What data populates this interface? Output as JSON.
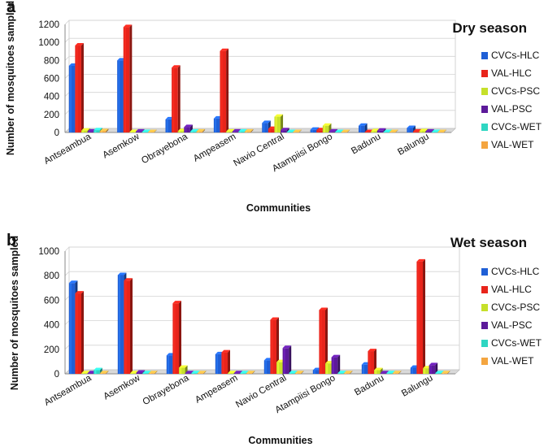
{
  "chart_data": [
    {
      "type": "bar",
      "panel_label": "a",
      "title": "Dry season",
      "xlabel": "Communities",
      "ylabel": "Number  of mosquitoes sampled",
      "ylim": [
        0,
        1200
      ],
      "yticks": [
        "0",
        "200",
        "400",
        "600",
        "800",
        "1000",
        "1200"
      ],
      "grid": true,
      "legend_position": "right",
      "categories": [
        "Antseambua",
        "Asemkow",
        "Obrayebona",
        "Ampeasem",
        "Navio Central",
        "Atampiisi Bongo",
        "Badunu",
        "Balungu"
      ],
      "series": [
        {
          "name": "CVCs-HLC",
          "color": "#1f5fd6",
          "values": [
            740,
            800,
            145,
            155,
            105,
            30,
            75,
            50
          ]
        },
        {
          "name": "VAL-HLC",
          "color": "#e8241b",
          "values": [
            965,
            1170,
            720,
            905,
            40,
            25,
            5,
            10
          ]
        },
        {
          "name": "CVCs-PSC",
          "color": "#c6e02a",
          "values": [
            20,
            5,
            15,
            10,
            175,
            75,
            15,
            15
          ]
        },
        {
          "name": "VAL-PSC",
          "color": "#5c1a9a",
          "values": [
            10,
            10,
            60,
            10,
            25,
            10,
            20,
            10
          ]
        },
        {
          "name": "CVCs-WET",
          "color": "#2fd6c2",
          "values": [
            25,
            5,
            10,
            10,
            5,
            5,
            5,
            5
          ]
        },
        {
          "name": "VAL-WET",
          "color": "#f4a540",
          "values": [
            15,
            5,
            10,
            10,
            5,
            5,
            5,
            5
          ]
        }
      ]
    },
    {
      "type": "bar",
      "panel_label": "b",
      "title": "Wet season",
      "xlabel": "Communities",
      "ylabel": "Number of mosquitoes sampled",
      "ylim": [
        0,
        1000
      ],
      "yticks": [
        "0",
        "200",
        "400",
        "600",
        "800",
        "1000"
      ],
      "grid": true,
      "legend_position": "right",
      "categories": [
        "Antseambua",
        "Asemkow",
        "Obrayebona",
        "Ampeasem",
        "Navio Central",
        "Atampiisi Bongo",
        "Badunu",
        "Balungu"
      ],
      "series": [
        {
          "name": "CVCs-HLC",
          "color": "#1f5fd6",
          "values": [
            740,
            805,
            150,
            160,
            110,
            30,
            75,
            50
          ]
        },
        {
          "name": "VAL-HLC",
          "color": "#e8241b",
          "values": [
            655,
            760,
            575,
            175,
            440,
            520,
            185,
            915
          ]
        },
        {
          "name": "CVCs-PSC",
          "color": "#c6e02a",
          "values": [
            5,
            5,
            50,
            5,
            95,
            85,
            30,
            45
          ]
        },
        {
          "name": "VAL-PSC",
          "color": "#5c1a9a",
          "values": [
            5,
            10,
            5,
            5,
            210,
            135,
            5,
            70
          ]
        },
        {
          "name": "CVCs-WET",
          "color": "#2fd6c2",
          "values": [
            30,
            5,
            5,
            5,
            5,
            5,
            5,
            5
          ]
        },
        {
          "name": "VAL-WET",
          "color": "#f4a540",
          "values": [
            5,
            5,
            5,
            5,
            5,
            5,
            5,
            5
          ]
        }
      ]
    }
  ]
}
